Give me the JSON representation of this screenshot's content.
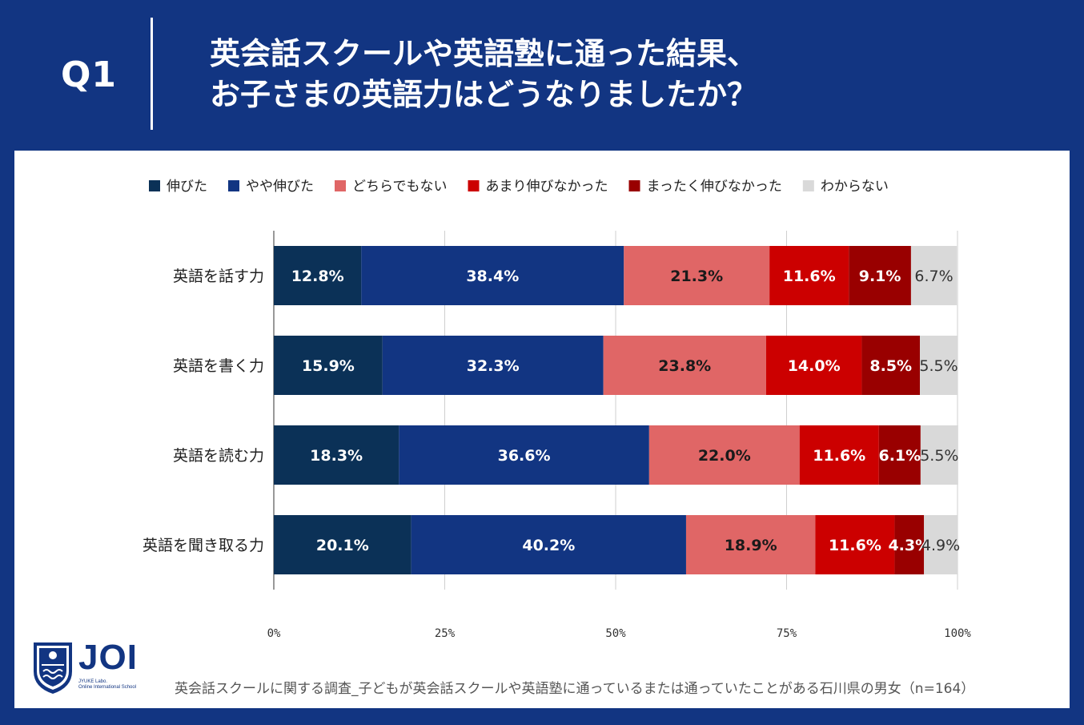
{
  "header": {
    "q_label": "Q1",
    "title_line1": "英会話スクールや英語塾に通った結果、",
    "title_line2": "お子さまの英語力はどうなりましたか？"
  },
  "footer": {
    "source": "英会話スクールに関する調査_子どもが英会話スクールや英語塾に通っているまたは通っていたことがある石川県の男女（n=164）",
    "logo_text": "JOI",
    "logo_sub1": "JYUKE Labo.",
    "logo_sub2": "Online International School"
  },
  "chart_data": {
    "type": "bar",
    "orientation": "horizontal",
    "stacked": true,
    "categories": [
      "英語を話す力",
      "英語を書く力",
      "英語を読む力",
      "英語を聞き取る力"
    ],
    "series": [
      {
        "name": "伸びた",
        "color": "#0b3157",
        "label_color": "#ffffff",
        "values": [
          12.8,
          15.9,
          18.3,
          20.1
        ]
      },
      {
        "name": "やや伸びた",
        "color": "#123582",
        "label_color": "#ffffff",
        "values": [
          38.4,
          32.3,
          36.6,
          40.2
        ]
      },
      {
        "name": "どちらでもない",
        "color": "#e06666",
        "label_color": "#1a1a1a",
        "values": [
          21.3,
          23.8,
          22.0,
          18.9
        ]
      },
      {
        "name": "あまり伸びなかった",
        "color": "#cc0000",
        "label_color": "#ffffff",
        "values": [
          11.6,
          14.0,
          11.6,
          11.6
        ]
      },
      {
        "name": "まったく伸びなかった",
        "color": "#990000",
        "label_color": "#ffffff",
        "values": [
          9.1,
          8.5,
          6.1,
          4.3
        ]
      },
      {
        "name": "わからない",
        "color": "#d9d9d9",
        "label_color": "#333333",
        "values": [
          6.7,
          5.5,
          5.5,
          4.9
        ]
      }
    ],
    "xlim": [
      0,
      100
    ],
    "x_ticks": [
      "0%",
      "25%",
      "50%",
      "75%",
      "100%"
    ],
    "grid": true,
    "legend_position": "top"
  }
}
